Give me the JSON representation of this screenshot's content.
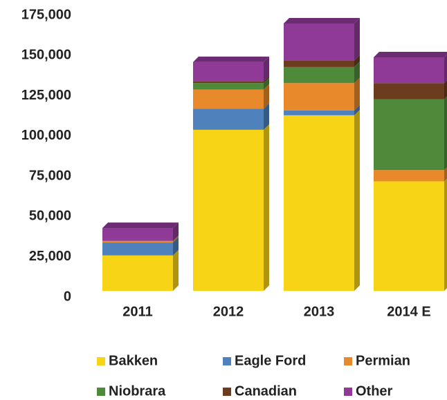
{
  "chart_data": {
    "type": "bar",
    "stacked": true,
    "categories": [
      "2011",
      "2012",
      "2013",
      "2014 E"
    ],
    "series": [
      {
        "name": "Bakken",
        "color": "#f8d416",
        "values": [
          22000,
          100000,
          109000,
          68000
        ]
      },
      {
        "name": "Eagle Ford",
        "color": "#4f81bd",
        "values": [
          8000,
          13000,
          3000,
          0
        ]
      },
      {
        "name": "Permian",
        "color": "#e8892b",
        "values": [
          1000,
          12000,
          17000,
          7000
        ]
      },
      {
        "name": "Niobrara",
        "color": "#4e8a3a",
        "values": [
          0,
          4000,
          10000,
          44000
        ]
      },
      {
        "name": "Canadian",
        "color": "#6b3d1e",
        "values": [
          0,
          1000,
          4000,
          10000
        ]
      },
      {
        "name": "Other",
        "color": "#8e3a96",
        "values": [
          8000,
          12000,
          23000,
          16000
        ]
      }
    ],
    "ylim": [
      0,
      175000
    ],
    "yticks": [
      0,
      {
        "value": 25000,
        "label": "25,000"
      },
      {
        "value": 50000,
        "label": "50,000"
      },
      {
        "value": 75000,
        "label": "75,000"
      },
      {
        "value": 100000,
        "label": "100,000"
      },
      {
        "value": 125000,
        "label": "125,000"
      },
      {
        "value": 150000,
        "label": "150,000"
      },
      {
        "value": 175000,
        "label": "175,000"
      }
    ],
    "legend": "bottom"
  }
}
